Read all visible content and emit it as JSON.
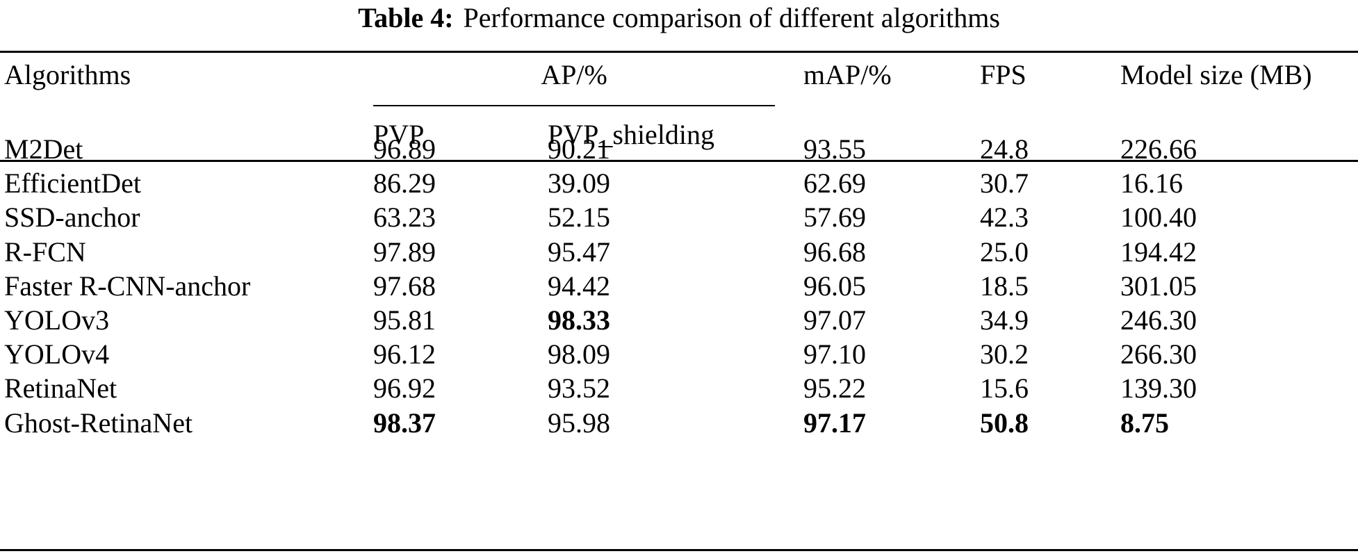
{
  "caption": {
    "label": "Table 4:",
    "text": "Performance comparison of different algorithms"
  },
  "header": {
    "algorithms": "Algorithms",
    "ap": "AP/%",
    "pvp": "PVP",
    "pvp_shielding": "PVP_shielding",
    "map": "mAP/%",
    "fps": "FPS",
    "model_size": "Model size (MB)"
  },
  "rows": [
    {
      "algorithm": "M2Det",
      "pvp": "96.89",
      "pvp_shielding": "90.21",
      "map": "93.55",
      "fps": "24.8",
      "model_size": "226.66"
    },
    {
      "algorithm": "EfficientDet",
      "pvp": "86.29",
      "pvp_shielding": "39.09",
      "map": "62.69",
      "fps": "30.7",
      "model_size": "16.16"
    },
    {
      "algorithm": "SSD-anchor",
      "pvp": "63.23",
      "pvp_shielding": "52.15",
      "map": "57.69",
      "fps": "42.3",
      "model_size": "100.40"
    },
    {
      "algorithm": "R-FCN",
      "pvp": "97.89",
      "pvp_shielding": "95.47",
      "map": "96.68",
      "fps": "25.0",
      "model_size": "194.42"
    },
    {
      "algorithm": "Faster R-CNN-anchor",
      "pvp": "97.68",
      "pvp_shielding": "94.42",
      "map": "96.05",
      "fps": "18.5",
      "model_size": "301.05"
    },
    {
      "algorithm": "YOLOv3",
      "pvp": "95.81",
      "pvp_shielding": "98.33",
      "map": "97.07",
      "fps": "34.9",
      "model_size": "246.30",
      "bold": [
        "pvp_shielding"
      ]
    },
    {
      "algorithm": "YOLOv4",
      "pvp": "96.12",
      "pvp_shielding": "98.09",
      "map": "97.10",
      "fps": "30.2",
      "model_size": "266.30"
    },
    {
      "algorithm": "RetinaNet",
      "pvp": "96.92",
      "pvp_shielding": "93.52",
      "map": "95.22",
      "fps": "15.6",
      "model_size": "139.30"
    },
    {
      "algorithm": "Ghost-RetinaNet",
      "pvp": "98.37",
      "pvp_shielding": "95.98",
      "map": "97.17",
      "fps": "50.8",
      "model_size": "8.75",
      "bold": [
        "pvp",
        "map",
        "fps",
        "model_size"
      ]
    }
  ]
}
